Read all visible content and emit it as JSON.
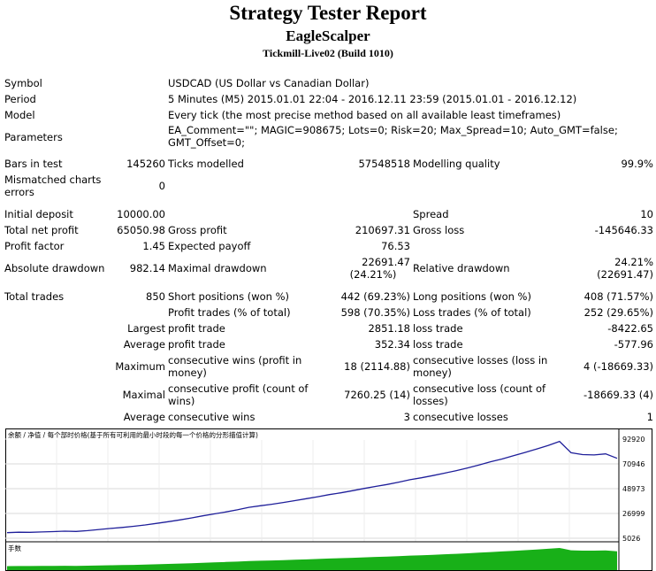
{
  "header": {
    "title": "Strategy Tester Report",
    "ea_name": "EagleScalper",
    "server": "Tickmill-Live02 (Build 1010)"
  },
  "info": {
    "symbol_label": "Symbol",
    "symbol_value": "USDCAD (US Dollar vs Canadian Dollar)",
    "period_label": "Period",
    "period_value": "5 Minutes (M5) 2015.01.01 22:04 - 2016.12.11 23:59 (2015.01.01 - 2016.12.12)",
    "model_label": "Model",
    "model_value": "Every tick (the most precise method based on all available least timeframes)",
    "parameters_label": "Parameters",
    "parameters_line1": "EA_Comment=\"\"; MAGIC=908675; Lots=0; Risk=20; Max_Spread=10; Auto_GMT=false;",
    "parameters_line2": "GMT_Offset=0;"
  },
  "bars": {
    "bars_label": "Bars in test",
    "bars_value": "145260",
    "ticks_label": "Ticks modelled",
    "ticks_value": "57548518",
    "quality_label": "Modelling quality",
    "quality_value": "99.9%",
    "mismatch_label_1": "Mismatched charts",
    "mismatch_label_2": "errors",
    "mismatch_value": "0"
  },
  "results": {
    "initial_deposit_label": "Initial deposit",
    "initial_deposit_value": "10000.00",
    "spread_label": "Spread",
    "spread_value": "10",
    "net_profit_label": "Total net profit",
    "net_profit_value": "65050.98",
    "gross_profit_label": "Gross profit",
    "gross_profit_value": "210697.31",
    "gross_loss_label": "Gross loss",
    "gross_loss_value": "-145646.33",
    "profit_factor_label": "Profit factor",
    "profit_factor_value": "1.45",
    "expected_payoff_label": "Expected payoff",
    "expected_payoff_value": "76.53",
    "abs_dd_label": "Absolute drawdown",
    "abs_dd_value": "982.14",
    "max_dd_label": "Maximal drawdown",
    "max_dd_value_1": "22691.47",
    "max_dd_value_2": "(24.21%)",
    "rel_dd_label": "Relative drawdown",
    "rel_dd_value_1": "24.21%",
    "rel_dd_value_2": "(22691.47)"
  },
  "trades": {
    "total_label": "Total trades",
    "total_value": "850",
    "short_label": "Short positions (won %)",
    "short_value": "442 (69.23%)",
    "long_label": "Long positions (won %)",
    "long_value": "408 (71.57%)",
    "profit_trades_label": "Profit trades (% of total)",
    "profit_trades_value": "598 (70.35%)",
    "loss_trades_label": "Loss trades (% of total)",
    "loss_trades_value": "252 (29.65%)",
    "largest_label": "Largest",
    "largest_profit_label": "profit trade",
    "largest_profit_value": "2851.18",
    "largest_loss_label": "loss trade",
    "largest_loss_value": "-8422.65",
    "average_label": "Average",
    "average_profit_label": "profit trade",
    "average_profit_value": "352.34",
    "average_loss_label": "loss trade",
    "average_loss_value": "-577.96",
    "maximum_label": "Maximum",
    "max_cons_wins_label_1": "consecutive wins (profit in",
    "max_cons_wins_label_2": "money)",
    "max_cons_wins_value": "18 (2114.88)",
    "max_cons_losses_label_1": "consecutive losses (loss in",
    "max_cons_losses_label_2": "money)",
    "max_cons_losses_value": "4 (-18669.33)",
    "maximal_label": "Maximal",
    "maximal_profit_label_1": "consecutive profit (count of",
    "maximal_profit_label_2": "wins)",
    "maximal_profit_value": "7260.25 (14)",
    "maximal_loss_label_1": "consecutive loss (count of",
    "maximal_loss_label_2": "losses)",
    "maximal_loss_value": "-18669.33 (4)",
    "avg_cons_label": "Average",
    "avg_cons_wins_label": "consecutive wins",
    "avg_cons_wins_value": "3",
    "avg_cons_losses_label": "consecutive losses",
    "avg_cons_losses_value": "1"
  },
  "chart_data": {
    "type": "line",
    "legend_text": "余额 / 净值 / 每个部时价格(基于所有可利用的最小时段的每一个价格的分形描值计算)",
    "lot_panel_label": "手数",
    "y_ticks": [
      "92920",
      "70946",
      "48973",
      "26999",
      "5026"
    ],
    "ylim": [
      5026,
      92920
    ],
    "line_color": "#1f1f9a",
    "volume_color": "#18b018",
    "grid": true,
    "balance": [
      10000,
      10400,
      10250,
      10600,
      10900,
      11300,
      11100,
      11800,
      12800,
      13700,
      14600,
      15600,
      16800,
      18200,
      19700,
      21300,
      23000,
      24900,
      26600,
      28300,
      30200,
      32400,
      33800,
      35200,
      36700,
      38400,
      40100,
      41800,
      43700,
      45300,
      47200,
      49100,
      50900,
      52700,
      54700,
      56900,
      58600,
      60600,
      62700,
      64900,
      67300,
      69900,
      72800,
      75300,
      78200,
      81100,
      84100,
      87300,
      90900,
      80800,
      79200,
      78900,
      79800,
      75900
    ]
  }
}
